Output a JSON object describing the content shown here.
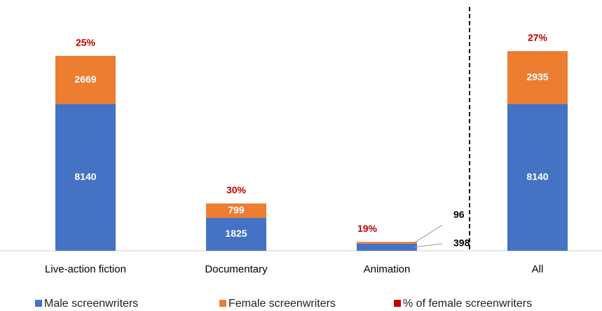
{
  "chart_data": {
    "type": "stacked_bar",
    "categories": [
      "Live-action fiction",
      "Documentary",
      "Animation",
      "All"
    ],
    "series": [
      {
        "name": "Male screenwriters",
        "color": "#4472c4",
        "values": [
          8140,
          1825,
          398,
          8140
        ]
      },
      {
        "name": "Female screenwriters",
        "color": "#ed7d31",
        "values": [
          2669,
          799,
          96,
          2935
        ]
      },
      {
        "name": "% of female screenwriters",
        "color": "#c00000",
        "values": [
          25,
          30,
          19,
          27
        ],
        "value_labels": [
          "25%",
          "30%",
          "19%",
          "27%"
        ]
      }
    ]
  }
}
